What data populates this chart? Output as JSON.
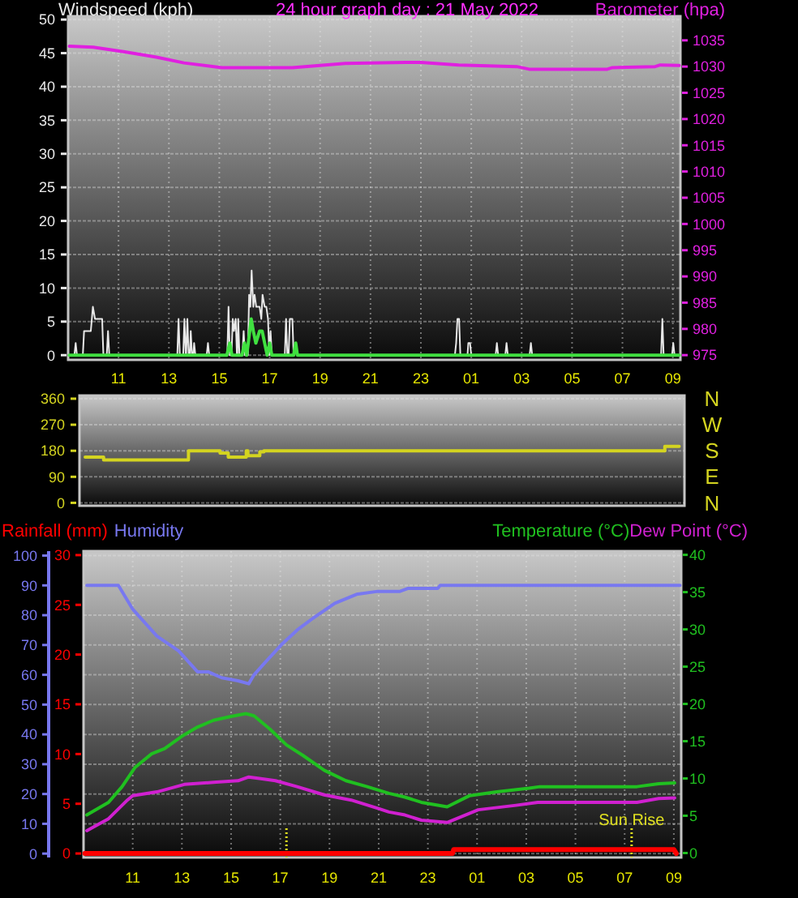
{
  "chart_data": [
    {
      "type": "line",
      "title": "24 hour graph day : 21 May 2022",
      "legend": "top",
      "grid": true,
      "xlim": [
        "2022-05-21T09:00",
        "2022-05-22T09:18"
      ],
      "xticks": [
        {
          "value": "2022-05-21T11:00",
          "label": "11"
        },
        {
          "value": "2022-05-21T13:00",
          "label": "13"
        },
        {
          "value": "2022-05-21T15:00",
          "label": "15"
        },
        {
          "value": "2022-05-21T17:00",
          "label": "17"
        },
        {
          "value": "2022-05-21T19:00",
          "label": "19"
        },
        {
          "value": "2022-05-21T21:00",
          "label": "21"
        },
        {
          "value": "2022-05-21T23:00",
          "label": "23"
        },
        {
          "value": "2022-05-22T01:00",
          "label": "01"
        },
        {
          "value": "2022-05-22T03:00",
          "label": "03"
        },
        {
          "value": "2022-05-22T05:00",
          "label": "05"
        },
        {
          "value": "2022-05-22T07:00",
          "label": "07"
        },
        {
          "value": "2022-05-22T09:00",
          "label": "09"
        }
      ],
      "ylim": [
        -0.7,
        50.5
      ],
      "yticks": [
        0,
        5,
        10,
        15,
        20,
        25,
        30,
        35,
        40,
        45,
        50
      ],
      "y2lim": [
        974.1,
        1039.6
      ],
      "y2ticks": [
        975,
        980,
        985,
        990,
        995,
        1000,
        1005,
        1010,
        1015,
        1020,
        1025,
        1030,
        1035
      ],
      "series": [
        {
          "name": "Windspeed (kph)",
          "color": "#e8e8e8",
          "x": [
            "2022-05-21T09:03",
            "2022-05-21T09:15",
            "2022-05-21T09:18",
            "2022-05-21T09:21",
            "2022-05-21T09:35",
            "2022-05-21T09:38",
            "2022-05-21T09:54",
            "2022-05-21T09:59",
            "2022-05-21T10:04",
            "2022-05-21T10:21",
            "2022-05-21T10:24",
            "2022-05-21T10:32",
            "2022-05-21T10:35",
            "2022-05-21T10:38",
            "2022-05-21T13:20",
            "2022-05-21T13:23",
            "2022-05-21T13:26",
            "2022-05-21T13:34",
            "2022-05-21T13:37",
            "2022-05-21T13:40",
            "2022-05-21T13:41",
            "2022-05-21T13:44",
            "2022-05-21T13:47",
            "2022-05-21T13:50",
            "2022-05-21T13:52",
            "2022-05-21T13:55",
            "2022-05-21T13:58",
            "2022-05-21T14:00",
            "2022-05-21T14:03",
            "2022-05-21T14:30",
            "2022-05-21T14:33",
            "2022-05-21T14:36",
            "2022-05-21T15:19",
            "2022-05-21T15:22",
            "2022-05-21T15:25",
            "2022-05-21T15:29",
            "2022-05-21T15:32",
            "2022-05-21T15:35",
            "2022-05-21T15:39",
            "2022-05-21T15:42",
            "2022-05-21T15:43",
            "2022-05-21T15:45",
            "2022-05-21T15:48",
            "2022-05-21T15:55",
            "2022-05-21T15:58",
            "2022-05-21T16:01",
            "2022-05-21T16:08",
            "2022-05-21T16:11",
            "2022-05-21T16:14",
            "2022-05-21T16:17",
            "2022-05-21T16:21",
            "2022-05-21T16:24",
            "2022-05-21T16:28",
            "2022-05-21T16:36",
            "2022-05-21T16:40",
            "2022-05-21T16:43",
            "2022-05-21T16:48",
            "2022-05-21T16:52",
            "2022-05-21T16:56",
            "2022-05-21T16:59",
            "2022-05-21T17:02",
            "2022-05-21T17:05",
            "2022-05-21T17:36",
            "2022-05-21T17:39",
            "2022-05-21T17:42",
            "2022-05-21T17:45",
            "2022-05-21T17:48",
            "2022-05-21T17:54",
            "2022-05-21T17:57",
            "2022-05-21T17:59",
            "2022-05-21T18:02",
            "2022-05-21T18:05",
            "2022-05-22T00:21",
            "2022-05-22T00:24",
            "2022-05-22T00:27",
            "2022-05-22T00:31",
            "2022-05-22T00:34",
            "2022-05-22T00:51",
            "2022-05-22T00:53",
            "2022-05-22T00:57",
            "2022-05-22T01:00",
            "2022-05-22T01:58",
            "2022-05-22T02:01",
            "2022-05-22T02:04",
            "2022-05-22T02:21",
            "2022-05-22T02:24",
            "2022-05-22T02:27",
            "2022-05-22T03:19",
            "2022-05-22T03:22",
            "2022-05-22T03:25",
            "2022-05-22T08:32",
            "2022-05-22T08:35",
            "2022-05-22T08:38",
            "2022-05-22T08:58",
            "2022-05-22T09:01",
            "2022-05-22T09:04",
            "2022-05-22T09:15"
          ],
          "values": [
            0,
            0,
            1.8,
            0,
            0,
            3.6,
            3.6,
            7.2,
            5.4,
            5.4,
            0,
            0,
            3.6,
            0,
            0,
            5.4,
            0,
            0,
            5.4,
            0,
            0,
            5.4,
            0,
            0,
            3.6,
            0,
            0,
            1.8,
            0,
            0,
            1.8,
            0,
            0,
            7.2,
            0,
            0,
            5.4,
            3.6,
            5.4,
            0,
            0,
            5.4,
            0,
            0,
            3.6,
            0,
            0,
            9,
            7.2,
            12.6,
            7.2,
            9,
            7.2,
            7.2,
            5.4,
            9,
            7.2,
            7.2,
            5.4,
            0,
            3.6,
            0,
            0,
            5.4,
            0,
            0,
            5.4,
            5.4,
            0,
            0,
            1.8,
            0,
            0,
            1.8,
            5.4,
            5.4,
            0,
            0,
            1.8,
            1.8,
            0,
            0,
            1.8,
            0,
            0,
            1.8,
            0,
            0,
            1.8,
            0,
            0,
            5.4,
            0,
            0,
            1.8,
            0,
            0
          ]
        },
        {
          "color": "#40e040",
          "x": [
            "2022-05-21T09:03",
            "2022-05-21T15:18",
            "2022-05-21T15:25",
            "2022-05-21T15:30",
            "2022-05-21T15:54",
            "2022-05-21T16:00",
            "2022-05-21T16:05",
            "2022-05-21T16:09",
            "2022-05-21T16:16",
            "2022-05-21T16:21",
            "2022-05-21T16:27",
            "2022-05-21T16:36",
            "2022-05-21T16:42",
            "2022-05-21T16:48",
            "2022-05-21T16:54",
            "2022-05-21T17:00",
            "2022-05-21T17:05",
            "2022-05-21T17:57",
            "2022-05-21T18:02",
            "2022-05-21T18:06",
            "2022-05-22T09:15"
          ],
          "values": [
            0,
            0,
            1.8,
            0,
            0,
            1.8,
            0,
            1.8,
            5.4,
            3.6,
            1.8,
            3.6,
            3.6,
            1.8,
            0,
            1.8,
            0,
            0,
            1.8,
            0,
            0
          ]
        },
        {
          "name": "Barometer (hpa)",
          "color": "#e020e0",
          "axis": "y2",
          "x": [
            "2022-05-21T09:03",
            "2022-05-21T10:00",
            "2022-05-21T11:15",
            "2022-05-21T12:30",
            "2022-05-21T13:36",
            "2022-05-21T15:06",
            "2022-05-21T17:54",
            "2022-05-21T19:12",
            "2022-05-21T20:00",
            "2022-05-21T22:24",
            "2022-05-21T23:00",
            "2022-05-22T00:30",
            "2022-05-22T02:48",
            "2022-05-22T03:18",
            "2022-05-22T06:24",
            "2022-05-22T06:36",
            "2022-05-22T08:18",
            "2022-05-22T08:30",
            "2022-05-22T09:15"
          ],
          "values": [
            1033.9,
            1033.7,
            1032.8,
            1031.8,
            1030.7,
            1029.8,
            1029.8,
            1030.3,
            1030.6,
            1030.8,
            1030.8,
            1030.3,
            1030,
            1029.5,
            1029.5,
            1029.8,
            1030,
            1030.3,
            1030.2
          ]
        }
      ]
    },
    {
      "type": "step",
      "grid": "y",
      "tick_labels": "y",
      "xlim": [
        "2022-05-21T09:00",
        "2022-05-22T09:18"
      ],
      "ylim": [
        -10,
        371
      ],
      "yticks": [
        0,
        90,
        180,
        270,
        360
      ],
      "y2_categories": [
        "N",
        "W",
        "S",
        "E",
        "N"
      ],
      "series": [
        {
          "color": "#d4d420",
          "x": [
            "2022-05-21T09:04",
            "2022-05-21T09:49",
            "2022-05-21T13:16",
            "2022-05-21T14:33",
            "2022-05-21T14:53",
            "2022-05-21T15:37",
            "2022-05-21T15:41",
            "2022-05-21T16:10",
            "2022-05-21T16:20",
            "2022-05-22T08:38",
            "2022-05-22T09:13"
          ],
          "values": [
            158,
            148,
            180,
            172,
            158,
            180,
            163,
            176,
            180,
            195,
            195
          ]
        }
      ]
    },
    {
      "type": "line",
      "legend": "top",
      "grid": true,
      "xlim": [
        "2022-05-21T09:00",
        "2022-05-22T09:18"
      ],
      "xticks": [
        {
          "value": "2022-05-21T11:00",
          "label": "11"
        },
        {
          "value": "2022-05-21T13:00",
          "label": "13"
        },
        {
          "value": "2022-05-21T15:00",
          "label": "15"
        },
        {
          "value": "2022-05-21T17:00",
          "label": "17"
        },
        {
          "value": "2022-05-21T19:00",
          "label": "19"
        },
        {
          "value": "2022-05-21T21:00",
          "label": "21"
        },
        {
          "value": "2022-05-21T23:00",
          "label": "23"
        },
        {
          "value": "2022-05-22T01:00",
          "label": "01"
        },
        {
          "value": "2022-05-22T03:00",
          "label": "03"
        },
        {
          "value": "2022-05-22T05:00",
          "label": "05"
        },
        {
          "value": "2022-05-22T07:00",
          "label": "07"
        },
        {
          "value": "2022-05-22T09:00",
          "label": "09"
        }
      ],
      "ylim": [
        -1.3,
        101.5
      ],
      "yticks": [
        0,
        10,
        20,
        30,
        40,
        50,
        60,
        70,
        80,
        90,
        100
      ],
      "y2lim": [
        -0.6,
        40.5
      ],
      "y2ticks": [
        0,
        5,
        10,
        15,
        20,
        25,
        30,
        35,
        40
      ],
      "y3lim": [
        -0.4,
        30.4
      ],
      "y3ticks": [
        0,
        5,
        10,
        15,
        20,
        25,
        30
      ],
      "ref_lines": [
        {
          "axis": "x",
          "value": "2022-05-21T17:15",
          "color": "#e0e020",
          "line_style": "dotted"
        },
        {
          "axis": "x",
          "value": "2022-05-22T07:17",
          "label": "Sun Rise",
          "color": "#e0e020",
          "line_style": "dotted"
        }
      ],
      "series": [
        {
          "name": "Rainfall (mm)",
          "color": "#ff0000",
          "axis": "y3",
          "x": [
            "2022-05-21T09:03",
            "2022-05-22T00:00",
            "2022-05-22T00:03",
            "2022-05-22T09:00",
            "2022-05-22T09:06"
          ],
          "values": [
            0,
            0,
            0.4,
            0.4,
            0
          ]
        },
        {
          "name": "Humidity",
          "color": "#7878f0",
          "x": [
            "2022-05-21T09:08",
            "2022-05-21T10:25",
            "2022-05-21T11:00",
            "2022-05-21T11:59",
            "2022-05-21T12:52",
            "2022-05-21T13:38",
            "2022-05-21T14:04",
            "2022-05-21T14:37",
            "2022-05-21T15:17",
            "2022-05-21T15:43",
            "2022-05-21T15:56",
            "2022-05-21T16:22",
            "2022-05-21T17:02",
            "2022-05-21T17:41",
            "2022-05-21T18:20",
            "2022-05-21T19:13",
            "2022-05-21T20:06",
            "2022-05-21T20:58",
            "2022-05-21T21:52",
            "2022-05-21T22:12",
            "2022-05-21T23:24",
            "2022-05-21T23:30",
            "2022-05-22T09:15"
          ],
          "values": [
            90,
            90,
            82,
            73,
            68,
            61,
            61,
            59,
            58,
            57,
            60,
            64,
            70,
            75,
            79,
            84,
            87,
            88,
            88,
            89,
            89,
            90,
            90
          ]
        },
        {
          "name": "Temperature (°C)",
          "color": "#20c020",
          "axis": "y2",
          "x": [
            "2022-05-21T09:08",
            "2022-05-21T10:01",
            "2022-05-21T10:34",
            "2022-05-21T11:06",
            "2022-05-21T11:46",
            "2022-05-21T12:18",
            "2022-05-21T12:58",
            "2022-05-21T13:38",
            "2022-05-21T14:17",
            "2022-05-21T14:57",
            "2022-05-21T15:36",
            "2022-05-21T15:56",
            "2022-05-21T16:35",
            "2022-05-21T17:15",
            "2022-05-21T17:55",
            "2022-05-21T18:47",
            "2022-05-21T19:40",
            "2022-05-21T20:32",
            "2022-05-21T21:25",
            "2022-05-21T22:04",
            "2022-05-21T22:44",
            "2022-05-21T23:47",
            "2022-05-22T00:42",
            "2022-05-22T01:48",
            "2022-05-22T03:07",
            "2022-05-22T03:33",
            "2022-05-22T07:30",
            "2022-05-22T08:23",
            "2022-05-22T09:02"
          ],
          "values": [
            5.1,
            6.8,
            8.9,
            11.5,
            13.3,
            14,
            15.6,
            16.9,
            17.8,
            18.3,
            18.7,
            18.4,
            16.6,
            14.5,
            13.1,
            11.1,
            9.7,
            8.9,
            8,
            7.5,
            6.8,
            6.2,
            7.7,
            8.2,
            8.7,
            8.9,
            8.9,
            9.3,
            9.4
          ]
        },
        {
          "name": "Dew Point (°C)",
          "color": "#d020d0",
          "axis": "y2",
          "x": [
            "2022-05-21T09:08",
            "2022-05-21T10:01",
            "2022-05-21T10:47",
            "2022-05-21T11:00",
            "2022-05-21T11:59",
            "2022-05-21T13:06",
            "2022-05-21T14:24",
            "2022-05-21T15:17",
            "2022-05-21T15:43",
            "2022-05-21T16:09",
            "2022-05-21T16:48",
            "2022-05-21T17:41",
            "2022-05-21T18:47",
            "2022-05-21T19:53",
            "2022-05-21T20:58",
            "2022-05-21T21:25",
            "2022-05-21T22:04",
            "2022-05-21T22:44",
            "2022-05-21T23:47",
            "2022-05-22T01:03",
            "2022-05-22T02:35",
            "2022-05-22T03:28",
            "2022-05-22T07:30",
            "2022-05-22T08:23",
            "2022-05-22T09:02"
          ],
          "values": [
            3,
            4.6,
            7.1,
            7.7,
            8.2,
            9.2,
            9.5,
            9.7,
            10.2,
            10,
            9.7,
            8.9,
            7.8,
            7.1,
            6,
            5.5,
            5.1,
            4.4,
            4.1,
            5.8,
            6.4,
            6.8,
            6.8,
            7.3,
            7.4
          ]
        }
      ]
    }
  ]
}
